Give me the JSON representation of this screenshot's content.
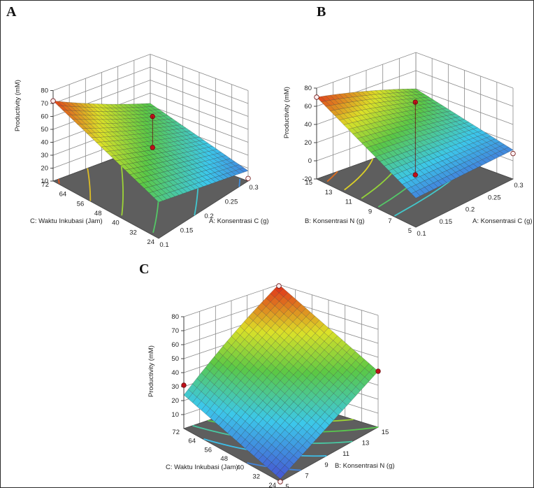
{
  "chart_data": [
    {
      "panel": "A",
      "type": "surface",
      "zlabel": "Productivity (mM)",
      "zticks": [
        "80",
        "70",
        "60",
        "50",
        "40",
        "30",
        "20",
        "10"
      ],
      "xlabel": "A: Konsentrasi C (g)",
      "xticks": [
        "0.1",
        "0.15",
        "0.2",
        "0.25",
        "0.3"
      ],
      "ylabel": "C: Waktu Inkubasi (Jam)",
      "yticks": [
        "24",
        "32",
        "40",
        "48",
        "56",
        "64",
        "72"
      ],
      "corners": {
        "A_low_C_high": 72,
        "A_low_C_low": 38,
        "A_high_C_high": 42,
        "A_high_C_low": 18
      },
      "design_points": [
        {
          "a": 0.1,
          "c": 72,
          "z": 72
        },
        {
          "a": 0.2,
          "c": 48,
          "z": 64
        },
        {
          "a": 0.2,
          "c": 48,
          "z": 40
        },
        {
          "a": 0.3,
          "c": 24,
          "z": 12
        }
      ]
    },
    {
      "panel": "B",
      "type": "surface",
      "zlabel": "Productivity (mM)",
      "zticks": [
        "80",
        "60",
        "40",
        "20",
        "0",
        "-20"
      ],
      "xlabel": "A: Konsentrasi C (g)",
      "xticks": [
        "0.1",
        "0.15",
        "0.2",
        "0.25",
        "0.3"
      ],
      "ylabel": "B: Konsentrasi N (g)",
      "yticks": [
        "5",
        "7",
        "9",
        "11",
        "13",
        "15"
      ],
      "corners": {
        "A_low_N_high": 70,
        "A_low_N_low": 12,
        "A_high_N_high": 40,
        "A_high_N_low": 12
      },
      "design_points": [
        {
          "a": 0.1,
          "n": 15,
          "z": 70
        },
        {
          "a": 0.2,
          "n": 10,
          "z": 68
        },
        {
          "a": 0.2,
          "n": 10,
          "z": -12
        },
        {
          "a": 0.3,
          "n": 5,
          "z": 8
        }
      ]
    },
    {
      "panel": "C",
      "type": "surface",
      "zlabel": "Productivity (mM)",
      "zticks": [
        "80",
        "70",
        "60",
        "50",
        "40",
        "30",
        "20",
        "10"
      ],
      "xlabel": "B: Konsentrasi N (g)",
      "xticks": [
        "5",
        "7",
        "9",
        "11",
        "13",
        "15"
      ],
      "ylabel": "C: Waktu Inkubasi (Jam)",
      "yticks": [
        "24",
        "32",
        "40",
        "48",
        "56",
        "64",
        "72"
      ],
      "corners": {
        "N_low_C_high": 24,
        "N_low_C_low": 2,
        "N_high_C_high": 80,
        "N_high_C_low": 40
      },
      "design_points": [
        {
          "n": 15,
          "c": 72,
          "z": 79
        },
        {
          "n": 10,
          "c": 48,
          "z": 61
        },
        {
          "n": 5,
          "c": 72,
          "z": 31
        },
        {
          "n": 5,
          "c": 24,
          "z": 0
        }
      ]
    }
  ]
}
